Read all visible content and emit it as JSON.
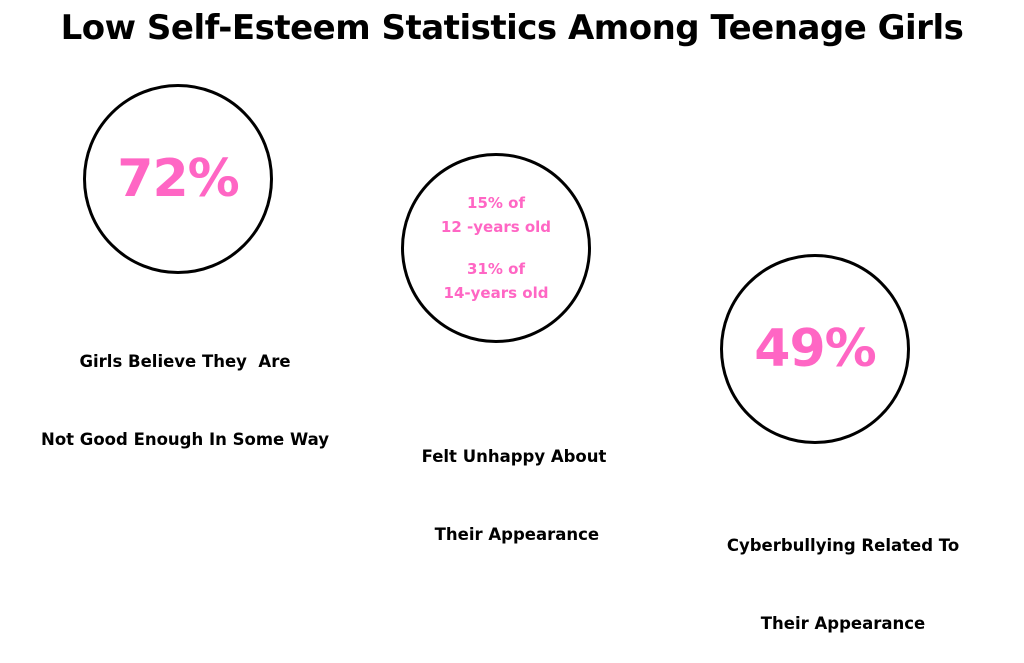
{
  "title": "Low Self-Esteem Statistics Among Teenage Girls",
  "accent_color": "#ff66c4",
  "stats": [
    {
      "value": "72%",
      "caption_lines": [
        "Girls Believe They  Are",
        "Not Good Enough In Some Way"
      ]
    },
    {
      "lines": [
        "15% of",
        "12 -years old",
        "31% of",
        "14-years old"
      ],
      "caption_lines": [
        "Felt Unhappy About",
        " Their Appearance"
      ]
    },
    {
      "value": "49%",
      "caption_lines": [
        "Cyberbullying Related To",
        "Their Appearance"
      ]
    }
  ]
}
